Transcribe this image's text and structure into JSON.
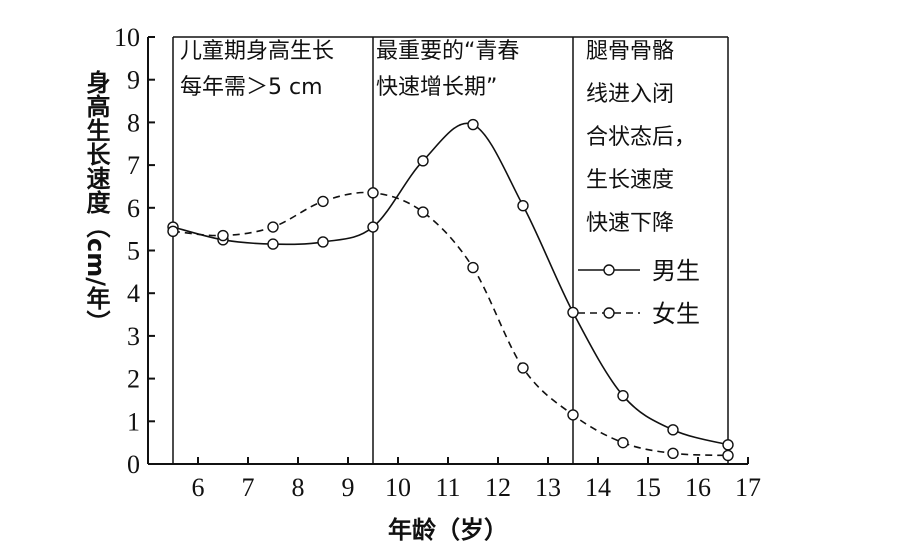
{
  "chart_data": {
    "type": "line",
    "xlabel": "年龄（岁）",
    "ylabel": "身高生长速度（cm/年）",
    "xlim": [
      5,
      17
    ],
    "ylim": [
      0,
      10
    ],
    "x_ticks": [
      6,
      7,
      8,
      9,
      10,
      11,
      12,
      13,
      14,
      15,
      16,
      17
    ],
    "y_ticks": [
      0,
      1,
      2,
      3,
      4,
      5,
      6,
      7,
      8,
      9,
      10
    ],
    "region_boundaries_x": [
      5.5,
      9.5,
      13.5,
      16.6
    ],
    "annotations": [
      {
        "id": "childhood",
        "lines": [
          "儿童期身高生长",
          "每年需＞5 cm"
        ]
      },
      {
        "id": "puberty",
        "lines": [
          "最重要的“青春",
          "快速增长期”"
        ]
      },
      {
        "id": "closure",
        "lines": [
          "腿骨骨骼",
          "线进入闭",
          "合状态后，",
          "生长速度",
          "快速下降"
        ]
      }
    ],
    "series": [
      {
        "name": "男生",
        "style": "solid",
        "x": [
          5.5,
          6.5,
          7.5,
          8.5,
          9.5,
          10.5,
          11.5,
          12.5,
          13.5,
          14.5,
          15.5,
          16.6
        ],
        "y": [
          5.55,
          5.25,
          5.15,
          5.2,
          5.55,
          7.1,
          7.95,
          6.05,
          3.55,
          1.6,
          0.8,
          0.45
        ]
      },
      {
        "name": "女生",
        "style": "dashed",
        "x": [
          5.5,
          6.5,
          7.5,
          8.5,
          9.5,
          10.5,
          11.5,
          12.5,
          13.5,
          14.5,
          15.5,
          16.6
        ],
        "y": [
          5.45,
          5.35,
          5.55,
          6.15,
          6.35,
          5.9,
          4.6,
          2.25,
          1.15,
          0.5,
          0.25,
          0.2
        ]
      }
    ],
    "legend": {
      "position": "right-middle",
      "entries": [
        "男生",
        "女生"
      ]
    }
  }
}
